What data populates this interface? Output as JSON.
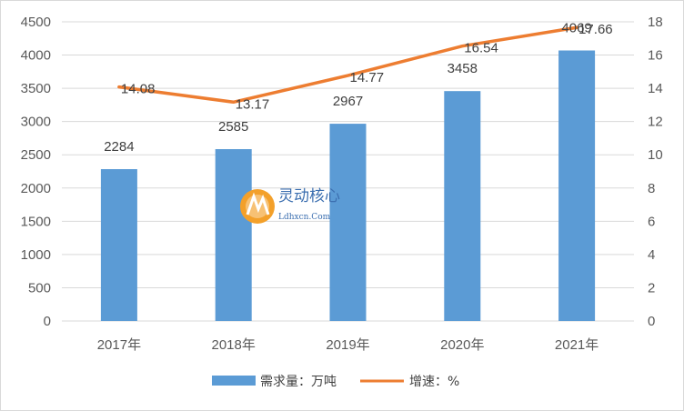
{
  "chart_data": {
    "type": "bar+line",
    "categories": [
      "2017年",
      "2018年",
      "2019年",
      "2020年",
      "2021年"
    ],
    "series": [
      {
        "name": "需求量：万吨",
        "type": "bar",
        "axis": "left",
        "values": [
          2284,
          2585,
          2967,
          3458,
          4069
        ]
      },
      {
        "name": "增速：%",
        "type": "line",
        "axis": "right",
        "values": [
          14.08,
          13.17,
          14.77,
          16.54,
          17.66
        ]
      }
    ],
    "y_left": {
      "min": 0,
      "max": 4500,
      "step": 500
    },
    "y_right": {
      "min": 0,
      "max": 18,
      "step": 2
    },
    "grid": true,
    "legend_position": "bottom",
    "colors": {
      "bar": "#5b9bd5",
      "line": "#ed7d31",
      "grid": "#d9d9d9",
      "axis_text": "#595959"
    }
  },
  "watermark": {
    "cn": "灵动核心",
    "en": "Ldhxcn.Com"
  }
}
